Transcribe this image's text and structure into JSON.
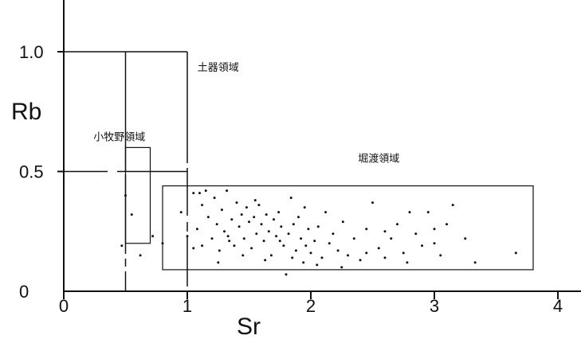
{
  "chart_data": {
    "type": "scatter",
    "xlabel": "Sr",
    "ylabel": "Rb",
    "xlim": [
      0,
      4.2
    ],
    "ylim": [
      0,
      1.2
    ],
    "x_ticks": [
      {
        "value": 0,
        "label": "0"
      },
      {
        "value": 1,
        "label": "1"
      },
      {
        "value": 2,
        "label": "2"
      },
      {
        "value": 3,
        "label": "3"
      },
      {
        "value": 4,
        "label": "4"
      }
    ],
    "y_ticks": [
      {
        "value": 0,
        "label": "0"
      },
      {
        "value": 0.5,
        "label": "0.5"
      },
      {
        "value": 1.0,
        "label": "1.0"
      }
    ],
    "grid": false,
    "regions": [
      {
        "id": "doki",
        "name": "土器領域",
        "x0": 0.5,
        "x1": 1.0,
        "y0": 0.0,
        "y1": 1.0,
        "label_at": [
          1.25,
          0.92
        ]
      },
      {
        "id": "komakino",
        "name": "小牧野領域",
        "x0": 0.5,
        "x1": 0.7,
        "y0": 0.2,
        "y1": 0.6,
        "label_at": [
          0.45,
          0.63
        ]
      },
      {
        "id": "hanado",
        "name": "堀渡領域",
        "x0": 0.8,
        "x1": 3.8,
        "y0": 0.09,
        "y1": 0.44,
        "label_at": [
          2.55,
          0.54
        ]
      }
    ],
    "series": [
      {
        "points": [
          [
            0.47,
            0.19
          ],
          [
            0.5,
            0.4
          ],
          [
            0.55,
            0.32
          ],
          [
            0.62,
            0.15
          ],
          [
            0.72,
            0.23
          ],
          [
            0.8,
            0.2
          ],
          [
            0.95,
            0.33
          ],
          [
            1.0,
            0.23
          ],
          [
            1.05,
            0.18
          ],
          [
            1.08,
            0.26
          ],
          [
            1.1,
            0.41
          ],
          [
            1.12,
            0.36
          ],
          [
            1.15,
            0.42
          ],
          [
            1.17,
            0.31
          ],
          [
            1.2,
            0.22
          ],
          [
            1.22,
            0.39
          ],
          [
            1.24,
            0.28
          ],
          [
            1.26,
            0.17
          ],
          [
            1.28,
            0.34
          ],
          [
            1.3,
            0.25
          ],
          [
            1.32,
            0.42
          ],
          [
            1.34,
            0.21
          ],
          [
            1.36,
            0.3
          ],
          [
            1.38,
            0.19
          ],
          [
            1.4,
            0.37
          ],
          [
            1.42,
            0.27
          ],
          [
            1.44,
            0.32
          ],
          [
            1.46,
            0.22
          ],
          [
            1.48,
            0.35
          ],
          [
            1.5,
            0.29
          ],
          [
            1.52,
            0.18
          ],
          [
            1.54,
            0.31
          ],
          [
            1.56,
            0.24
          ],
          [
            1.58,
            0.36
          ],
          [
            1.6,
            0.28
          ],
          [
            1.62,
            0.21
          ],
          [
            1.64,
            0.32
          ],
          [
            1.66,
            0.25
          ],
          [
            1.68,
            0.15
          ],
          [
            1.7,
            0.3
          ],
          [
            1.72,
            0.23
          ],
          [
            1.74,
            0.33
          ],
          [
            1.76,
            0.27
          ],
          [
            1.78,
            0.19
          ],
          [
            1.8,
            0.07
          ],
          [
            1.82,
            0.24
          ],
          [
            1.84,
            0.39
          ],
          [
            1.86,
            0.28
          ],
          [
            1.88,
            0.17
          ],
          [
            1.9,
            0.31
          ],
          [
            1.92,
            0.22
          ],
          [
            1.94,
            0.12
          ],
          [
            1.96,
            0.19
          ],
          [
            1.98,
            0.26
          ],
          [
            2.0,
            0.16
          ],
          [
            2.03,
            0.21
          ],
          [
            2.06,
            0.27
          ],
          [
            2.09,
            0.14
          ],
          [
            2.12,
            0.33
          ],
          [
            2.15,
            0.2
          ],
          [
            2.18,
            0.24
          ],
          [
            2.22,
            0.17
          ],
          [
            2.26,
            0.29
          ],
          [
            2.3,
            0.15
          ],
          [
            2.35,
            0.22
          ],
          [
            2.4,
            0.13
          ],
          [
            2.45,
            0.26
          ],
          [
            2.5,
            0.37
          ],
          [
            2.55,
            0.18
          ],
          [
            2.6,
            0.14
          ],
          [
            2.65,
            0.22
          ],
          [
            2.7,
            0.28
          ],
          [
            2.75,
            0.16
          ],
          [
            2.8,
            0.33
          ],
          [
            2.85,
            0.24
          ],
          [
            2.9,
            0.19
          ],
          [
            2.95,
            0.33
          ],
          [
            3.0,
            0.26
          ],
          [
            3.05,
            0.15
          ],
          [
            3.1,
            0.28
          ],
          [
            3.15,
            0.36
          ],
          [
            3.25,
            0.22
          ],
          [
            3.33,
            0.12
          ],
          [
            3.66,
            0.16
          ],
          [
            1.05,
            0.41
          ],
          [
            1.12,
            0.19
          ],
          [
            1.25,
            0.12
          ],
          [
            1.33,
            0.23
          ],
          [
            1.45,
            0.15
          ],
          [
            1.55,
            0.38
          ],
          [
            1.63,
            0.13
          ],
          [
            1.75,
            0.21
          ],
          [
            1.85,
            0.14
          ],
          [
            1.95,
            0.35
          ],
          [
            2.05,
            0.11
          ],
          [
            2.25,
            0.1
          ],
          [
            2.45,
            0.16
          ],
          [
            2.6,
            0.25
          ],
          [
            2.78,
            0.12
          ],
          [
            3.0,
            0.2
          ]
        ]
      }
    ]
  }
}
